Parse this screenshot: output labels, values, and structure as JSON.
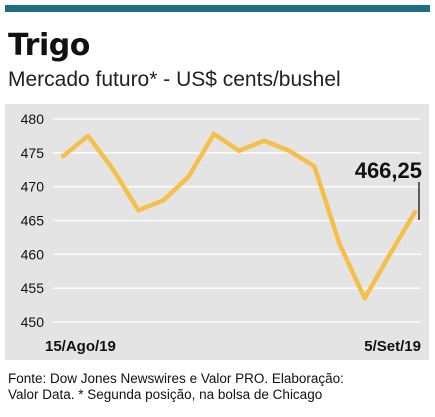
{
  "title": "Trigo",
  "subtitle": "Mercado futuro* - US$ cents/bushel",
  "source": {
    "line1": "Fonte: Dow Jones Newswires e Valor PRO. Elaboração:",
    "line2": "Valor Data. * Segunda posição, na bolsa de Chicago"
  },
  "colors": {
    "accent": "#1e6f86",
    "line": "#f5c04a",
    "panel": "#e4e4e4"
  },
  "chart_data": {
    "type": "line",
    "title": "Trigo",
    "subtitle": "Mercado futuro* - US$ cents/bushel",
    "ylim": [
      450,
      480
    ],
    "yticks": [
      450,
      455,
      460,
      465,
      470,
      475,
      480
    ],
    "ytick_labels": [
      "450",
      "455",
      "460",
      "465",
      "470",
      "475",
      "480"
    ],
    "grid": true,
    "x_start_label": "15/Ago/19",
    "x_end_label": "5/Set/19",
    "values": [
      474.5,
      477.5,
      472.5,
      466.5,
      468.0,
      471.5,
      477.8,
      475.3,
      476.8,
      475.3,
      473.0,
      461.5,
      453.5,
      460.0,
      466.25
    ],
    "annotation": {
      "label": "466,25",
      "value": 466.25
    }
  }
}
